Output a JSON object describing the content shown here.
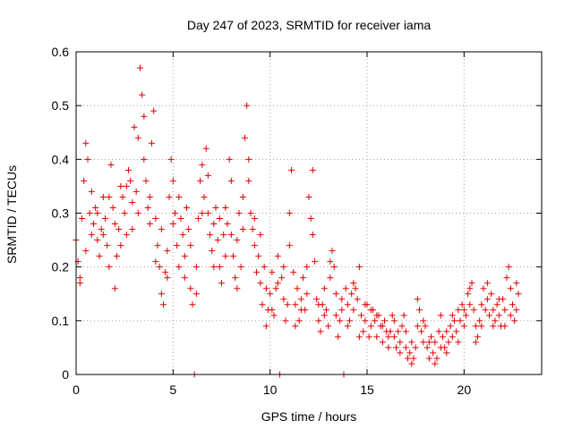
{
  "chart_data": {
    "type": "scatter",
    "title": "Day 247 of 2023, SRMTID for receiver iama",
    "xlabel": "GPS time / hours",
    "ylabel": "SRMTID / TECUs",
    "xlim": [
      0,
      24
    ],
    "ylim": [
      0,
      0.6
    ],
    "xticks": [
      0,
      5,
      10,
      15,
      20
    ],
    "xtick_labels": [
      "0",
      "5",
      "10",
      "15",
      "20"
    ],
    "yticks": [
      0,
      0.1,
      0.2,
      0.3,
      0.4,
      0.5,
      0.6
    ],
    "ytick_labels": [
      "0",
      "0.1",
      "0.2",
      "0.3",
      "0.4",
      "0.5",
      "0.6"
    ],
    "grid": true,
    "marker": "plus",
    "color": "#e00000",
    "series": [
      {
        "name": "SRMTID",
        "points": [
          [
            0.0,
            0.25
          ],
          [
            0.1,
            0.21
          ],
          [
            0.2,
            0.18
          ],
          [
            0.3,
            0.29
          ],
          [
            0.4,
            0.36
          ],
          [
            0.5,
            0.43
          ],
          [
            0.6,
            0.4
          ],
          [
            0.7,
            0.3
          ],
          [
            0.8,
            0.26
          ],
          [
            0.9,
            0.28
          ],
          [
            1.0,
            0.31
          ],
          [
            1.1,
            0.25
          ],
          [
            1.2,
            0.22
          ],
          [
            1.3,
            0.27
          ],
          [
            1.4,
            0.33
          ],
          [
            1.5,
            0.29
          ],
          [
            1.6,
            0.24
          ],
          [
            1.7,
            0.2
          ],
          [
            1.8,
            0.39
          ],
          [
            1.9,
            0.31
          ],
          [
            2.0,
            0.16
          ],
          [
            2.1,
            0.22
          ],
          [
            2.2,
            0.27
          ],
          [
            2.3,
            0.35
          ],
          [
            2.4,
            0.33
          ],
          [
            2.5,
            0.3
          ],
          [
            2.6,
            0.26
          ],
          [
            2.7,
            0.38
          ],
          [
            2.8,
            0.36
          ],
          [
            2.9,
            0.32
          ],
          [
            3.0,
            0.46
          ],
          [
            3.1,
            0.34
          ],
          [
            3.2,
            0.3
          ],
          [
            3.3,
            0.57
          ],
          [
            3.4,
            0.52
          ],
          [
            3.5,
            0.4
          ],
          [
            3.6,
            0.36
          ],
          [
            3.7,
            0.31
          ],
          [
            3.8,
            0.28
          ],
          [
            3.9,
            0.43
          ],
          [
            4.0,
            0.49
          ],
          [
            4.1,
            0.29
          ],
          [
            4.2,
            0.24
          ],
          [
            4.3,
            0.2
          ],
          [
            4.4,
            0.15
          ],
          [
            4.5,
            0.13
          ],
          [
            4.6,
            0.19
          ],
          [
            4.7,
            0.23
          ],
          [
            4.8,
            0.33
          ],
          [
            4.9,
            0.4
          ],
          [
            5.0,
            0.36
          ],
          [
            5.1,
            0.3
          ],
          [
            5.2,
            0.24
          ],
          [
            5.3,
            0.2
          ],
          [
            5.4,
            0.29
          ],
          [
            5.5,
            0.26
          ],
          [
            5.6,
            0.22
          ],
          [
            5.7,
            0.31
          ],
          [
            5.8,
            0.27
          ],
          [
            5.9,
            0.16
          ],
          [
            6.0,
            0.13
          ],
          [
            6.1,
            0.0
          ],
          [
            6.2,
            0.2
          ],
          [
            6.3,
            0.29
          ],
          [
            6.4,
            0.36
          ],
          [
            6.5,
            0.39
          ],
          [
            6.6,
            0.33
          ],
          [
            6.7,
            0.42
          ],
          [
            6.8,
            0.3
          ],
          [
            6.9,
            0.26
          ],
          [
            7.0,
            0.23
          ],
          [
            7.1,
            0.28
          ],
          [
            7.2,
            0.31
          ],
          [
            7.3,
            0.25
          ],
          [
            7.4,
            0.2
          ],
          [
            7.5,
            0.17
          ],
          [
            7.6,
            0.26
          ],
          [
            7.7,
            0.31
          ],
          [
            7.8,
            0.28
          ],
          [
            7.9,
            0.4
          ],
          [
            8.0,
            0.36
          ],
          [
            8.1,
            0.22
          ],
          [
            8.2,
            0.18
          ],
          [
            8.3,
            0.25
          ],
          [
            8.4,
            0.3
          ],
          [
            8.5,
            0.2
          ],
          [
            8.6,
            0.33
          ],
          [
            8.7,
            0.44
          ],
          [
            8.8,
            0.5
          ],
          [
            8.9,
            0.36
          ],
          [
            9.0,
            0.3
          ],
          [
            9.1,
            0.27
          ],
          [
            9.2,
            0.24
          ],
          [
            9.3,
            0.19
          ],
          [
            9.4,
            0.22
          ],
          [
            9.5,
            0.17
          ],
          [
            9.6,
            0.13
          ],
          [
            9.7,
            0.2
          ],
          [
            9.8,
            0.16
          ],
          [
            9.9,
            0.12
          ],
          [
            10.0,
            0.15
          ],
          [
            10.1,
            0.19
          ],
          [
            10.2,
            0.11
          ],
          [
            10.3,
            0.16
          ],
          [
            10.4,
            0.22
          ],
          [
            10.5,
            0.0
          ],
          [
            10.6,
            0.18
          ],
          [
            10.7,
            0.14
          ],
          [
            10.8,
            0.1
          ],
          [
            10.9,
            0.13
          ],
          [
            11.0,
            0.3
          ],
          [
            11.1,
            0.38
          ],
          [
            11.2,
            0.19
          ],
          [
            11.3,
            0.13
          ],
          [
            11.4,
            0.16
          ],
          [
            11.5,
            0.1
          ],
          [
            11.6,
            0.14
          ],
          [
            11.7,
            0.18
          ],
          [
            11.8,
            0.12
          ],
          [
            11.9,
            0.15
          ],
          [
            12.0,
            0.33
          ],
          [
            12.1,
            0.29
          ],
          [
            12.2,
            0.38
          ],
          [
            12.3,
            0.21
          ],
          [
            12.4,
            0.14
          ],
          [
            12.5,
            0.1
          ],
          [
            12.6,
            0.08
          ],
          [
            12.7,
            0.13
          ],
          [
            12.8,
            0.16
          ],
          [
            12.9,
            0.12
          ],
          [
            13.0,
            0.09
          ],
          [
            13.1,
            0.21
          ],
          [
            13.2,
            0.23
          ],
          [
            13.3,
            0.2
          ],
          [
            13.4,
            0.11
          ],
          [
            13.5,
            0.07
          ],
          [
            13.6,
            0.1
          ],
          [
            13.7,
            0.14
          ],
          [
            13.8,
            0.0
          ],
          [
            13.9,
            0.16
          ],
          [
            14.0,
            0.13
          ],
          [
            14.1,
            0.1
          ],
          [
            14.2,
            0.15
          ],
          [
            14.3,
            0.12
          ],
          [
            14.4,
            0.16
          ],
          [
            14.5,
            0.14
          ],
          [
            14.6,
            0.2
          ],
          [
            14.7,
            0.11
          ],
          [
            14.8,
            0.08
          ],
          [
            14.9,
            0.1
          ],
          [
            15.0,
            0.13
          ],
          [
            15.1,
            0.07
          ],
          [
            15.2,
            0.09
          ],
          [
            15.3,
            0.12
          ],
          [
            15.4,
            0.1
          ],
          [
            15.5,
            0.07
          ],
          [
            15.6,
            0.11
          ],
          [
            15.7,
            0.09
          ],
          [
            15.8,
            0.06
          ],
          [
            15.9,
            0.1
          ],
          [
            16.0,
            0.08
          ],
          [
            16.1,
            0.05
          ],
          [
            16.2,
            0.08
          ],
          [
            16.3,
            0.11
          ],
          [
            16.4,
            0.07
          ],
          [
            16.5,
            0.05
          ],
          [
            16.6,
            0.08
          ],
          [
            16.7,
            0.06
          ],
          [
            16.8,
            0.09
          ],
          [
            16.9,
            0.11
          ],
          [
            17.0,
            0.05
          ],
          [
            17.1,
            0.03
          ],
          [
            17.2,
            0.04
          ],
          [
            17.3,
            0.06
          ],
          [
            17.4,
            0.03
          ],
          [
            17.5,
            0.05
          ],
          [
            17.6,
            0.09
          ],
          [
            17.7,
            0.12
          ],
          [
            17.8,
            0.08
          ],
          [
            17.9,
            0.06
          ],
          [
            18.0,
            0.09
          ],
          [
            18.1,
            0.05
          ],
          [
            18.2,
            0.03
          ],
          [
            18.3,
            0.07
          ],
          [
            18.4,
            0.04
          ],
          [
            18.5,
            0.06
          ],
          [
            18.6,
            0.03
          ],
          [
            18.7,
            0.08
          ],
          [
            18.8,
            0.11
          ],
          [
            18.9,
            0.07
          ],
          [
            19.0,
            0.05
          ],
          [
            19.1,
            0.08
          ],
          [
            19.2,
            0.06
          ],
          [
            19.3,
            0.09
          ],
          [
            19.4,
            0.07
          ],
          [
            19.5,
            0.1
          ],
          [
            19.6,
            0.08
          ],
          [
            19.7,
            0.12
          ],
          [
            19.8,
            0.1
          ],
          [
            19.9,
            0.13
          ],
          [
            20.0,
            0.09
          ],
          [
            20.1,
            0.11
          ],
          [
            20.2,
            0.15
          ],
          [
            20.3,
            0.13
          ],
          [
            20.4,
            0.17
          ],
          [
            20.5,
            0.12
          ],
          [
            20.6,
            0.09
          ],
          [
            20.7,
            0.07
          ],
          [
            20.8,
            0.1
          ],
          [
            20.9,
            0.13
          ],
          [
            21.0,
            0.16
          ],
          [
            21.1,
            0.12
          ],
          [
            21.2,
            0.14
          ],
          [
            21.3,
            0.11
          ],
          [
            21.4,
            0.15
          ],
          [
            21.5,
            0.12
          ],
          [
            21.6,
            0.1
          ],
          [
            21.7,
            0.13
          ],
          [
            21.8,
            0.11
          ],
          [
            21.9,
            0.09
          ],
          [
            22.0,
            0.14
          ],
          [
            22.1,
            0.12
          ],
          [
            22.2,
            0.18
          ],
          [
            22.3,
            0.2
          ],
          [
            22.4,
            0.16
          ],
          [
            22.5,
            0.13
          ],
          [
            22.6,
            0.1
          ],
          [
            22.7,
            0.12
          ],
          [
            22.8,
            0.15
          ],
          [
            0.2,
            0.17
          ],
          [
            0.5,
            0.23
          ],
          [
            0.8,
            0.34
          ],
          [
            1.1,
            0.3
          ],
          [
            1.4,
            0.26
          ],
          [
            1.7,
            0.33
          ],
          [
            2.0,
            0.28
          ],
          [
            2.3,
            0.24
          ],
          [
            2.6,
            0.35
          ],
          [
            2.9,
            0.27
          ],
          [
            3.2,
            0.44
          ],
          [
            3.5,
            0.48
          ],
          [
            3.8,
            0.33
          ],
          [
            4.1,
            0.21
          ],
          [
            4.4,
            0.27
          ],
          [
            4.7,
            0.18
          ],
          [
            5.0,
            0.28
          ],
          [
            5.3,
            0.33
          ],
          [
            5.6,
            0.18
          ],
          [
            5.9,
            0.24
          ],
          [
            6.2,
            0.15
          ],
          [
            6.5,
            0.3
          ],
          [
            6.8,
            0.37
          ],
          [
            7.1,
            0.2
          ],
          [
            7.4,
            0.29
          ],
          [
            7.7,
            0.22
          ],
          [
            8.0,
            0.26
          ],
          [
            8.3,
            0.16
          ],
          [
            8.6,
            0.27
          ],
          [
            8.9,
            0.4
          ],
          [
            9.2,
            0.29
          ],
          [
            9.5,
            0.26
          ],
          [
            9.8,
            0.09
          ],
          [
            10.1,
            0.12
          ],
          [
            10.4,
            0.17
          ],
          [
            10.7,
            0.2
          ],
          [
            11.0,
            0.24
          ],
          [
            11.3,
            0.09
          ],
          [
            11.6,
            0.12
          ],
          [
            11.9,
            0.2
          ],
          [
            12.2,
            0.26
          ],
          [
            12.5,
            0.13
          ],
          [
            12.8,
            0.11
          ],
          [
            13.1,
            0.18
          ],
          [
            13.4,
            0.15
          ],
          [
            13.7,
            0.12
          ],
          [
            14.0,
            0.09
          ],
          [
            14.3,
            0.17
          ],
          [
            14.6,
            0.07
          ],
          [
            14.9,
            0.13
          ],
          [
            15.2,
            0.12
          ],
          [
            15.5,
            0.11
          ],
          [
            15.8,
            0.09
          ],
          [
            16.1,
            0.07
          ],
          [
            16.4,
            0.1
          ],
          [
            16.7,
            0.04
          ],
          [
            17.0,
            0.08
          ],
          [
            17.3,
            0.02
          ],
          [
            17.6,
            0.14
          ],
          [
            17.9,
            0.1
          ],
          [
            18.2,
            0.06
          ],
          [
            18.5,
            0.02
          ],
          [
            18.8,
            0.05
          ],
          [
            19.1,
            0.04
          ],
          [
            19.4,
            0.11
          ],
          [
            19.7,
            0.06
          ],
          [
            20.0,
            0.12
          ],
          [
            20.3,
            0.16
          ],
          [
            20.6,
            0.06
          ],
          [
            20.9,
            0.09
          ],
          [
            21.2,
            0.17
          ],
          [
            21.5,
            0.09
          ],
          [
            21.8,
            0.14
          ],
          [
            22.1,
            0.09
          ],
          [
            22.4,
            0.11
          ],
          [
            22.7,
            0.17
          ]
        ]
      }
    ]
  }
}
